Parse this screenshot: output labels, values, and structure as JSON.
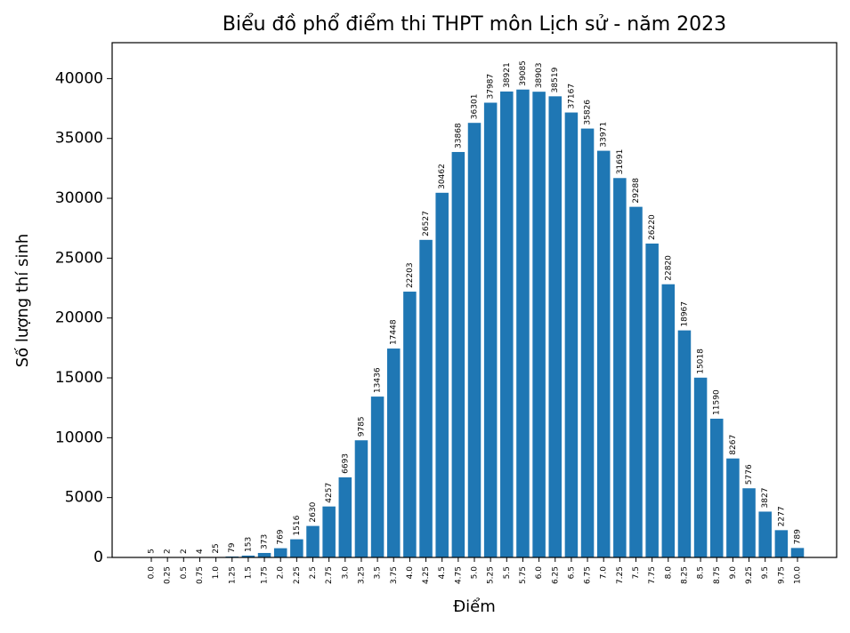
{
  "chart_data": {
    "type": "bar",
    "title": "Biểu đồ phổ điểm thi THPT môn Lịch sử - năm 2023",
    "x_label": "Điểm",
    "y_label": "Số lượng thí sinh",
    "categories": [
      "0.0",
      "0.25",
      "0.5",
      "0.75",
      "1.0",
      "1.25",
      "1.5",
      "1.75",
      "2.0",
      "2.25",
      "2.5",
      "2.75",
      "3.0",
      "3.25",
      "3.5",
      "3.75",
      "4.0",
      "4.25",
      "4.5",
      "4.75",
      "5.0",
      "5.25",
      "5.5",
      "5.75",
      "6.0",
      "6.25",
      "6.5",
      "6.75",
      "7.0",
      "7.25",
      "7.5",
      "7.75",
      "8.0",
      "8.25",
      "8.5",
      "8.75",
      "9.0",
      "9.25",
      "9.5",
      "9.75",
      "10.0"
    ],
    "values": [
      5,
      2,
      2,
      4,
      25,
      79,
      153,
      373,
      769,
      1516,
      2630,
      4257,
      6693,
      9785,
      13436,
      17448,
      22203,
      26527,
      30462,
      33868,
      36301,
      37987,
      38921,
      39085,
      38903,
      38519,
      37167,
      35826,
      33971,
      31691,
      29288,
      26220,
      22820,
      18967,
      15018,
      11590,
      8267,
      5776,
      3827,
      2277,
      789
    ],
    "color": "#1f77b4",
    "ylim": [
      0,
      43000
    ],
    "yticks": [
      0,
      5000,
      10000,
      15000,
      20000,
      25000,
      30000,
      35000,
      40000
    ]
  }
}
